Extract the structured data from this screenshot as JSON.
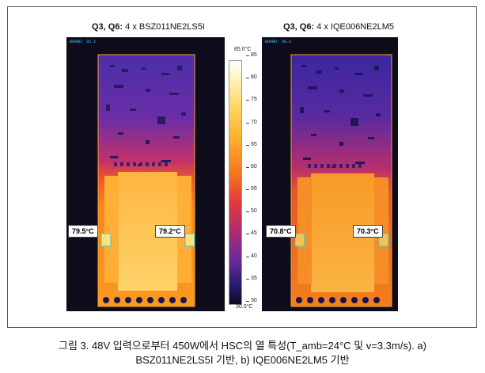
{
  "figure": {
    "left_title": {
      "bold": "Q3, Q6:",
      "rest": " 4 x BSZ011NE2LS5I"
    },
    "right_title": {
      "bold": "Q3, Q6:",
      "rest": " 4 x IQE006NE2LM5"
    },
    "left_board": "BOARD: 32.1",
    "right_board": "BOARD: 30.2",
    "left_labels": [
      "79.5°C",
      "79.2°C"
    ],
    "right_labels": [
      "70.8°C",
      "70.3°C"
    ],
    "scale": {
      "max_label": "85.0°C",
      "min_label": "30.0°C",
      "ticks": [
        "85",
        "80",
        "75",
        "70",
        "65",
        "60",
        "55",
        "50",
        "45",
        "40",
        "35",
        "30"
      ]
    },
    "caption_line1": "그림 3. 48V 입력으로부터 450W에서 HSC의 열 특성(T_amb=24°C 및 v=3.3m/s). a)",
    "caption_line2": "BSZ011NE2LS5I 기반, b) IQE006NE2LM5 기반"
  }
}
